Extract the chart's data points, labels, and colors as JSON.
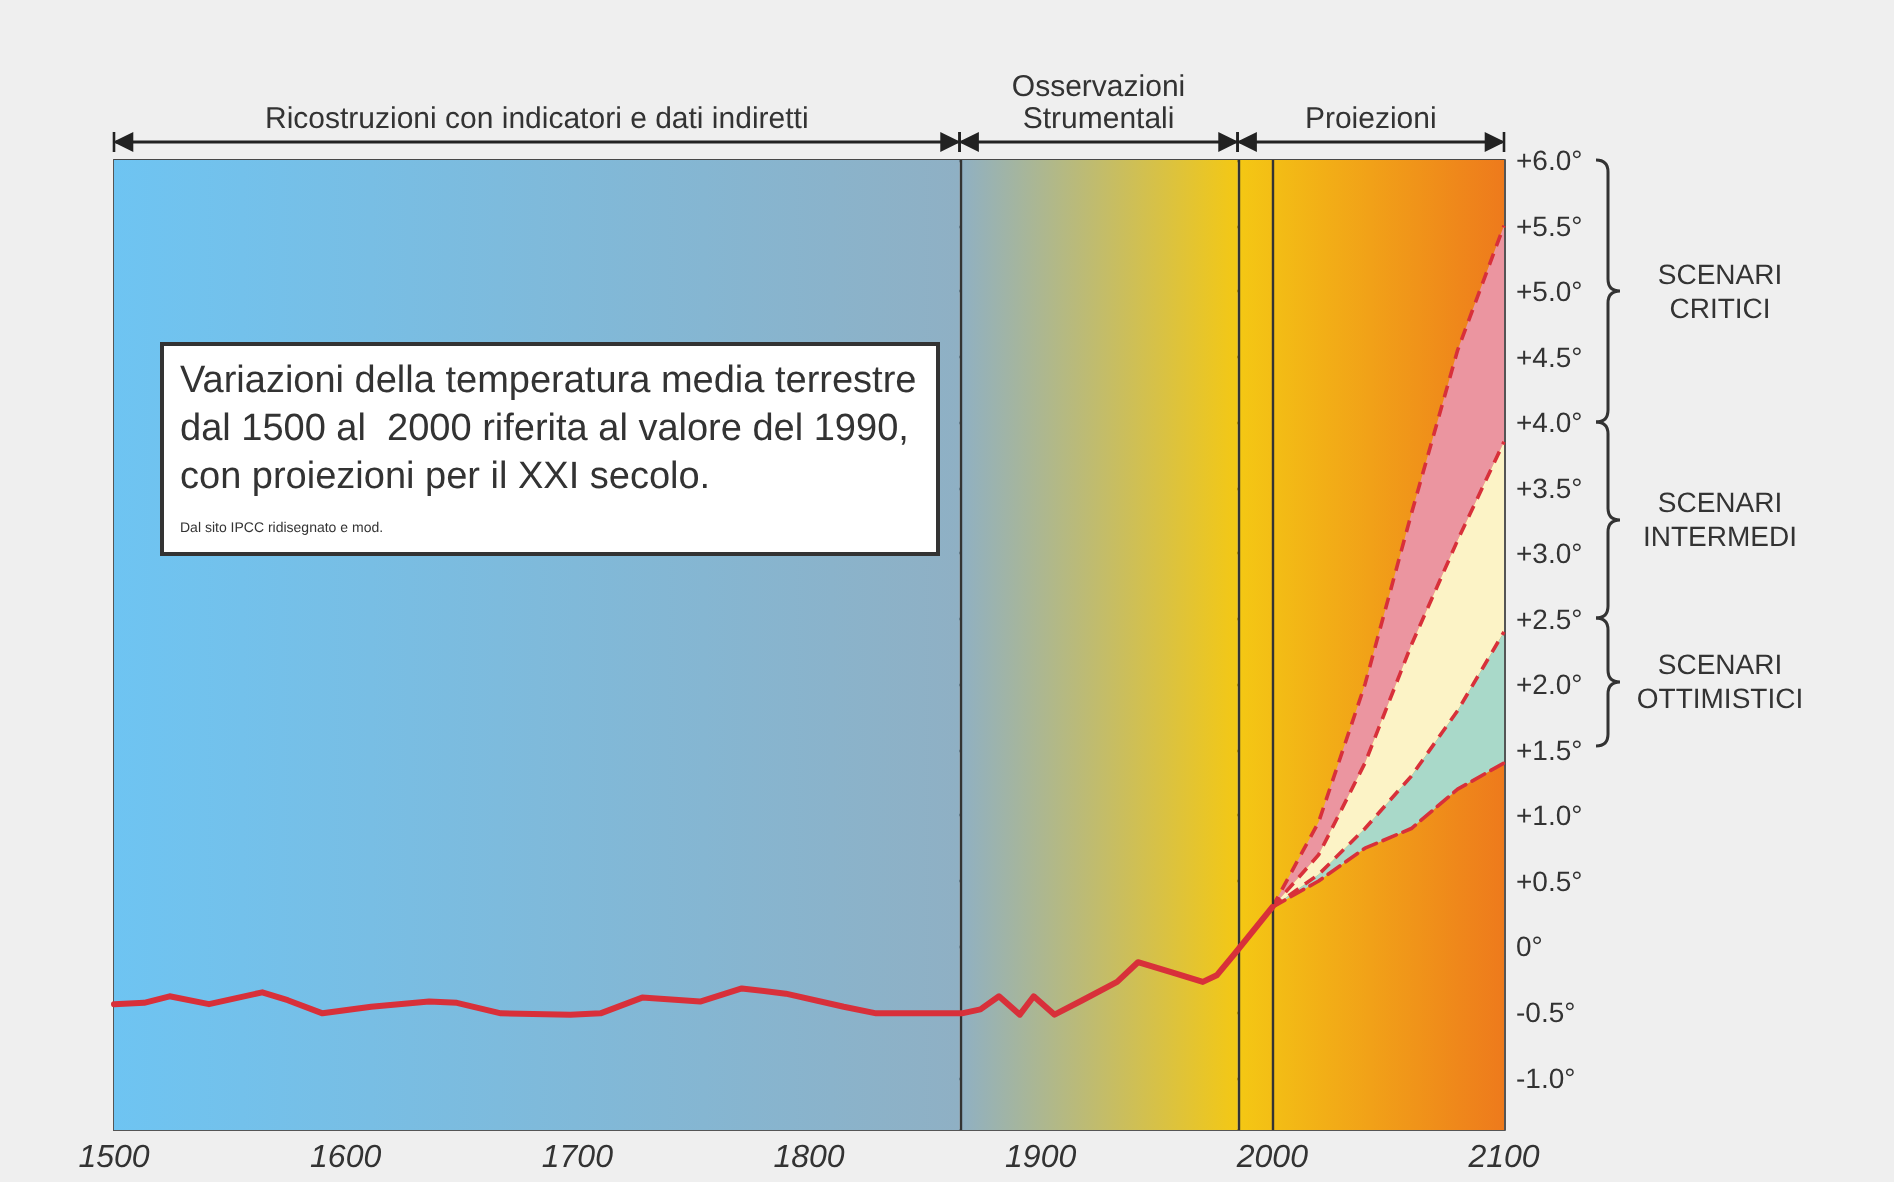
{
  "chart_data": {
    "type": "line",
    "title": "Variazioni della temperatura media terrestre dal 1500 al  2000 riferita al valore del 1990, con proiezioni per il XXI secolo.",
    "annotations": [
      "Dal sito IPCC ridisegnato e mod.",
      "SCENARI CRITICI",
      "SCENARI INTERMEDI",
      "SCENARI OTTIMISTICI"
    ],
    "xlim": [
      1500,
      2100
    ],
    "xticks": [
      1500,
      1600,
      1700,
      1800,
      1900,
      2000,
      2100
    ],
    "ylim": [
      -1.4,
      6.0
    ],
    "yticks": [
      {
        "value": -1.0,
        "label": "-1.0°"
      },
      {
        "value": -0.5,
        "label": "-0.5°"
      },
      {
        "value": 0,
        "label": "0°"
      },
      {
        "value": 0.5,
        "label": "+0.5°"
      },
      {
        "value": 1.0,
        "label": "+1.0°"
      },
      {
        "value": 1.5,
        "label": "+1.5°"
      },
      {
        "value": 2.0,
        "label": "+2.0°"
      },
      {
        "value": 2.5,
        "label": "+2.5°"
      },
      {
        "value": 3.0,
        "label": "+3.0°"
      },
      {
        "value": 3.5,
        "label": "+3.5°"
      },
      {
        "value": 4.0,
        "label": "+4.0°"
      },
      {
        "value": 4.5,
        "label": "+4.5°"
      },
      {
        "value": 5.0,
        "label": "+5.0°"
      },
      {
        "value": 5.5,
        "label": "+5.5°"
      },
      {
        "value": 6.0,
        "label": "+6.0°"
      }
    ],
    "grid": "y",
    "marker": "none",
    "series": [
      {
        "color": "#d8303a",
        "line_style": "solid",
        "x": [
          1500,
          1513,
          1524,
          1541,
          1564,
          1575,
          1590,
          1611,
          1636,
          1648,
          1667,
          1697,
          1710,
          1728,
          1753,
          1771,
          1790,
          1815,
          1829,
          1866,
          1874,
          1882,
          1891,
          1897,
          1906,
          1918,
          1933,
          1942,
          1957,
          1970,
          1976,
          1984,
          2000
        ],
        "values": [
          -0.44,
          -0.43,
          -0.38,
          -0.44,
          -0.35,
          -0.41,
          -0.51,
          -0.46,
          -0.42,
          -0.43,
          -0.51,
          -0.52,
          -0.51,
          -0.39,
          -0.42,
          -0.32,
          -0.36,
          -0.46,
          -0.51,
          -0.51,
          -0.48,
          -0.38,
          -0.52,
          -0.38,
          -0.52,
          -0.41,
          -0.27,
          -0.12,
          -0.2,
          -0.27,
          -0.22,
          -0.05,
          0.3
        ]
      },
      {
        "type": "area",
        "color": "#eb95a0",
        "line_style": "dashed",
        "x": [
          2000,
          2020,
          2040,
          2060,
          2080,
          2100
        ],
        "values": [
          0.3,
          0.95,
          2.0,
          3.3,
          4.55,
          5.5
        ]
      },
      {
        "type": "area",
        "color": "#fcf3c6",
        "line_style": "dashed",
        "x": [
          2000,
          2020,
          2040,
          2060,
          2080,
          2100
        ],
        "values": [
          0.3,
          0.7,
          1.4,
          2.3,
          3.1,
          3.85
        ]
      },
      {
        "type": "area",
        "color": "#a9d9c9",
        "line_style": "dashed",
        "x": [
          2000,
          2020,
          2040,
          2060,
          2080,
          2100
        ],
        "values": [
          0.3,
          0.55,
          0.9,
          1.3,
          1.8,
          2.4
        ]
      },
      {
        "color": "#d8303a",
        "line_style": "dashed",
        "x": [
          2000,
          2020,
          2040,
          2060,
          2080,
          2100
        ],
        "values": [
          0.3,
          0.5,
          0.75,
          0.9,
          1.2,
          1.4
        ]
      }
    ],
    "ref_lines": [
      {
        "axis": "x",
        "value": 1865,
        "color": "#333333"
      },
      {
        "axis": "x",
        "value": 1985,
        "color": "#333333"
      },
      {
        "axis": "x",
        "value": 2000,
        "color": "#333333"
      }
    ],
    "bands": [
      {
        "axis": "x",
        "from": 1500,
        "to": 1865,
        "label": "Ricostruzioni con indicatori e dati indiretti",
        "color": "#8fb0c4"
      },
      {
        "axis": "x",
        "from": 1865,
        "to": 1985,
        "label": "Osservazioni Strumentali",
        "color": "#f4c814"
      },
      {
        "axis": "x",
        "from": 1985,
        "to": 2100,
        "label": "Proiezioni",
        "color": "#ee7a1c"
      }
    ]
  }
}
